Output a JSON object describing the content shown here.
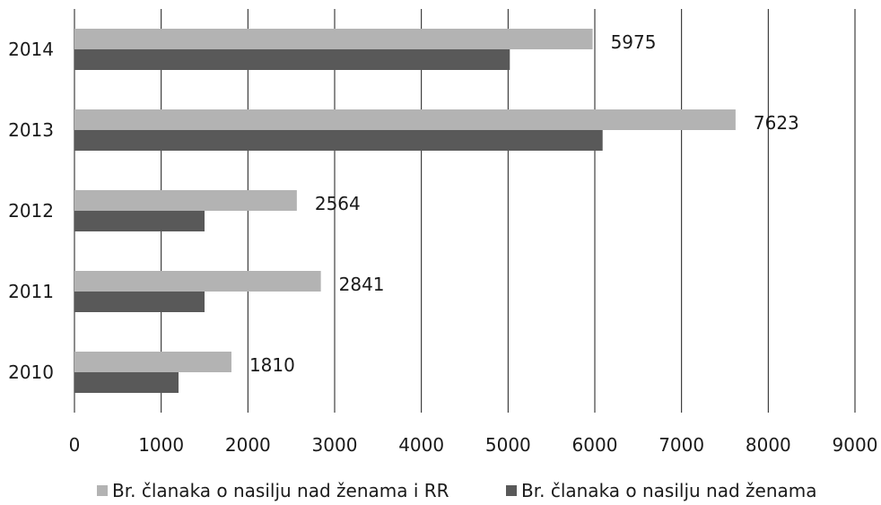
{
  "chart_data": {
    "type": "bar",
    "orientation": "horizontal",
    "categories": [
      "2014",
      "2013",
      "2012",
      "2011",
      "2010"
    ],
    "series": [
      {
        "name": "Br. članaka o nasilju nad ženama i RR",
        "color": "#b3b3b3",
        "values": [
          5975,
          7623,
          2564,
          2841,
          1810
        ],
        "labels": [
          "5975",
          "7623",
          "2564",
          "2841",
          "1810"
        ]
      },
      {
        "name": "Br. članaka o nasilju nad ženama",
        "color": "#595959",
        "values": [
          5020,
          6090,
          1500,
          1500,
          1200
        ]
      }
    ],
    "xlim": [
      0,
      9000
    ],
    "xticks": [
      0,
      1000,
      2000,
      3000,
      4000,
      5000,
      6000,
      7000,
      8000,
      9000
    ],
    "xtick_labels": [
      "0",
      "1000",
      "2000",
      "3000",
      "4000",
      "5000",
      "6000",
      "7000",
      "8000",
      "9000"
    ],
    "grid": "vertical",
    "legend": "bottom"
  }
}
